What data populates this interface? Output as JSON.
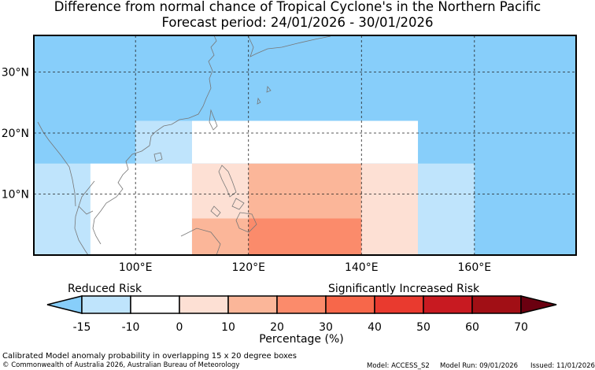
{
  "title": {
    "line1": "Difference from normal chance of Tropical Cyclone's in the Northern Pacific",
    "line2": "Forecast period: 24/01/2026 - 30/01/2026"
  },
  "map": {
    "lat_labels": [
      "30°N",
      "20°N",
      "10°N"
    ],
    "lon_labels": [
      "100°E",
      "120°E",
      "140°E",
      "160°E"
    ],
    "lat_values": [
      30,
      20,
      10
    ],
    "lon_values": [
      100,
      120,
      140,
      160
    ],
    "extent": {
      "lon_min": 82,
      "lon_max": 178,
      "lat_min": 0,
      "lat_max": 36
    },
    "background_color": "#87cefa",
    "grid": "dashed"
  },
  "chart_data": {
    "type": "heatmap",
    "description_units": "percentage point difference from normal",
    "cells": [
      {
        "lon": [
          82,
          92
        ],
        "lat": [
          0,
          15
        ],
        "category": "-15 to -10"
      },
      {
        "lon": [
          92,
          100
        ],
        "lat": [
          15,
          22
        ],
        "category": "below -15"
      },
      {
        "lon": [
          100,
          110
        ],
        "lat": [
          15,
          22
        ],
        "category": "-15 to -10"
      },
      {
        "lon": [
          110,
          150
        ],
        "lat": [
          15,
          22
        ],
        "category": "-10 to 0"
      },
      {
        "lon": [
          92,
          110
        ],
        "lat": [
          0,
          15
        ],
        "category": "-10 to 0"
      },
      {
        "lon": [
          110,
          120
        ],
        "lat": [
          6,
          15
        ],
        "category": "0 to 10"
      },
      {
        "lon": [
          120,
          140
        ],
        "lat": [
          6,
          15
        ],
        "category": "10 to 20"
      },
      {
        "lon": [
          140,
          150
        ],
        "lat": [
          0,
          15
        ],
        "category": "0 to 10"
      },
      {
        "lon": [
          150,
          160
        ],
        "lat": [
          0,
          15
        ],
        "category": "-15 to -10"
      },
      {
        "lon": [
          110,
          120
        ],
        "lat": [
          0,
          6
        ],
        "category": "10 to 20"
      },
      {
        "lon": [
          120,
          140
        ],
        "lat": [
          0,
          6
        ],
        "category": "20 to 30"
      }
    ]
  },
  "colorbar": {
    "left_label": "Reduced Risk",
    "right_label": "Significantly Increased Risk",
    "ticks": [
      "-15",
      "-10",
      "0",
      "10",
      "20",
      "30",
      "40",
      "50",
      "60",
      "70"
    ],
    "colors": [
      "#87cefa",
      "#bfe4fc",
      "#ffffff",
      "#fde0d4",
      "#fbb699",
      "#fb8b6b",
      "#f7674a",
      "#e93a2f",
      "#c81a21",
      "#a10f15",
      "#6b0010"
    ],
    "xlabel": "Percentage (%)"
  },
  "footer": {
    "note": "Calibrated Model anomaly probability in overlapping 15 x 20 degree boxes",
    "copyright": "© Commonwealth of Australia 2026, Australian Bureau of Meteorology",
    "model": "Model: ACCESS_S2",
    "run": "Model Run: 09/01/2026",
    "issued": "Issued: 11/01/2026"
  }
}
